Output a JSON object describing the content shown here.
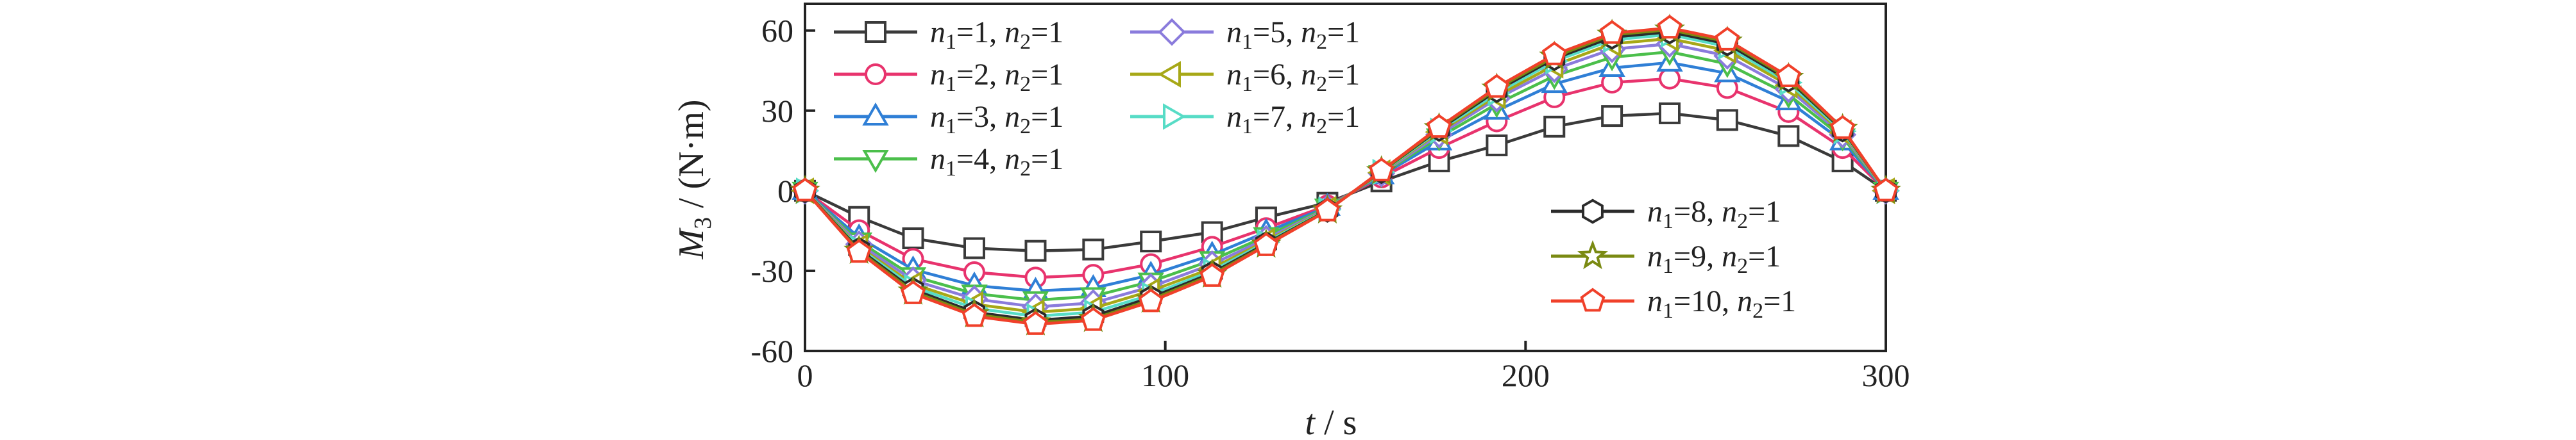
{
  "chart_data": {
    "type": "line",
    "xlabel": "t / s",
    "ylabel": "M3 / (N·m)",
    "xlim": [
      0,
      300
    ],
    "ylim": [
      -60,
      70
    ],
    "x_ticks": [
      0,
      100,
      200,
      300
    ],
    "y_ticks": [
      -60,
      -30,
      0,
      30,
      60
    ],
    "grid": false,
    "x": [
      0,
      15,
      30,
      47,
      64,
      80,
      96,
      113,
      128,
      145,
      160,
      176,
      192,
      208,
      224,
      240,
      256,
      273,
      288,
      300
    ],
    "series": [
      {
        "name": "n1=1, n2=1",
        "legend": {
          "a": "n",
          "a_sub": "1",
          "b": "=1, ",
          "c": "n",
          "c_sub": "2",
          "d": "=1"
        },
        "color": "#3a3a3a",
        "marker": "square",
        "values": [
          0,
          -9.8,
          -17.8,
          -21.5,
          -22.5,
          -22,
          -19,
          -15.5,
          -10,
          -4.5,
          3.5,
          11,
          17,
          24,
          28,
          29,
          26.5,
          20.5,
          11,
          0
        ]
      },
      {
        "name": "n1=2, n2=1",
        "legend": {
          "a": "n",
          "a_sub": "1",
          "b": "=2, ",
          "c": "n",
          "c_sub": "2",
          "d": "=1"
        },
        "color": "#e8336d",
        "marker": "circle",
        "values": [
          0,
          -14.8,
          -25.5,
          -30.5,
          -32.5,
          -31.5,
          -27.5,
          -21,
          -14,
          -5.5,
          5,
          16,
          26,
          35,
          40.5,
          42,
          38.5,
          29.5,
          16,
          0
        ]
      },
      {
        "name": "n1=3, n2=1",
        "legend": {
          "a": "n",
          "a_sub": "1",
          "b": "=3, ",
          "c": "n",
          "c_sub": "2",
          "d": "=1"
        },
        "color": "#2f7fd6",
        "marker": "triangle-up",
        "values": [
          0,
          -17.5,
          -29.5,
          -35.5,
          -37.5,
          -36.5,
          -31.5,
          -24,
          -15.5,
          -6,
          5.8,
          18.5,
          30,
          40,
          46,
          48,
          44,
          33.5,
          18.5,
          0
        ]
      },
      {
        "name": "n1=4, n2=1",
        "legend": {
          "a": "n",
          "a_sub": "1",
          "b": "=4, ",
          "c": "n",
          "c_sub": "2",
          "d": "=1"
        },
        "color": "#4bbf4b",
        "marker": "triangle-down",
        "values": [
          0,
          -19,
          -32,
          -38.5,
          -41,
          -39.5,
          -34,
          -26,
          -17,
          -6.3,
          6.2,
          20,
          32.5,
          43,
          50,
          52,
          47.5,
          36,
          20,
          0
        ]
      },
      {
        "name": "n1=5, n2=1",
        "legend": {
          "a": "n",
          "a_sub": "1",
          "b": "=5, ",
          "c": "n",
          "c_sub": "2",
          "d": "=1"
        },
        "color": "#8a7bdc",
        "marker": "diamond",
        "values": [
          0,
          -20,
          -33.5,
          -40.5,
          -43.5,
          -42,
          -36,
          -27.5,
          -18,
          -6.6,
          6.5,
          21,
          34.5,
          45.5,
          53,
          55,
          50.5,
          38,
          21,
          0
        ]
      },
      {
        "name": "n1=6, n2=1",
        "legend": {
          "a": "n",
          "a_sub": "1",
          "b": "=6, ",
          "c": "n",
          "c_sub": "2",
          "d": "=1"
        },
        "color": "#a7a817",
        "marker": "triangle-left",
        "values": [
          0,
          -21,
          -35,
          -42.5,
          -45.5,
          -44,
          -37.5,
          -29,
          -18.8,
          -6.9,
          6.8,
          22,
          35.5,
          47,
          55,
          57,
          52.5,
          39.5,
          21.8,
          0
        ]
      },
      {
        "name": "n1=7, n2=1",
        "legend": {
          "a": "n",
          "a_sub": "1",
          "b": "=7, ",
          "c": "n",
          "c_sub": "2",
          "d": "=1"
        },
        "color": "#57dcc6",
        "marker": "triangle-right",
        "values": [
          0,
          -21.5,
          -36,
          -44,
          -47,
          -45.5,
          -39,
          -30,
          -19.3,
          -7.1,
          7,
          22.5,
          36.5,
          48.5,
          56.5,
          58.5,
          54,
          40.5,
          22.3,
          0
        ]
      },
      {
        "name": "n1=8, n2=1",
        "legend": {
          "a": "n",
          "a_sub": "1",
          "b": "=8, ",
          "c": "n",
          "c_sub": "2",
          "d": "=1"
        },
        "color": "#2b2b2b",
        "marker": "hexagon",
        "values": [
          0,
          -22,
          -37,
          -45.5,
          -48.5,
          -47,
          -40,
          -30.8,
          -19.8,
          -7.3,
          7.2,
          23,
          37.5,
          49.5,
          57.5,
          59.5,
          55,
          41.5,
          22.8,
          0
        ]
      },
      {
        "name": "n1=9, n2=1",
        "legend": {
          "a": "n",
          "a_sub": "1",
          "b": "=9, ",
          "c": "n",
          "c_sub": "2",
          "d": "=1"
        },
        "color": "#7a8a12",
        "marker": "star",
        "values": [
          0,
          -22.5,
          -37.8,
          -46.3,
          -49.3,
          -48,
          -40.8,
          -31.4,
          -20.2,
          -7.4,
          7.3,
          23.4,
          38.2,
          50.2,
          58.4,
          60.3,
          55.8,
          42.2,
          23.1,
          0
        ]
      },
      {
        "name": "n1=10, n2=1",
        "legend": {
          "a": "n",
          "a_sub": "1",
          "b": "=10, ",
          "c": "n",
          "c_sub": "2",
          "d": "=1"
        },
        "color": "#f0402a",
        "marker": "pentagon",
        "values": [
          0,
          -23,
          -38.5,
          -47,
          -50,
          -48.5,
          -41.5,
          -32,
          -20.5,
          -7.5,
          7.5,
          23.8,
          38.8,
          51,
          59,
          61,
          56.5,
          42.8,
          23.4,
          0
        ]
      }
    ],
    "legend_placement": "top-left and bottom-right (inside plot)"
  },
  "axis_text": {
    "x_label_var": "t",
    "x_label_rest": " / s",
    "y_label_var": "M",
    "y_label_sub": "3",
    "y_label_rest": " / (N·m)"
  }
}
